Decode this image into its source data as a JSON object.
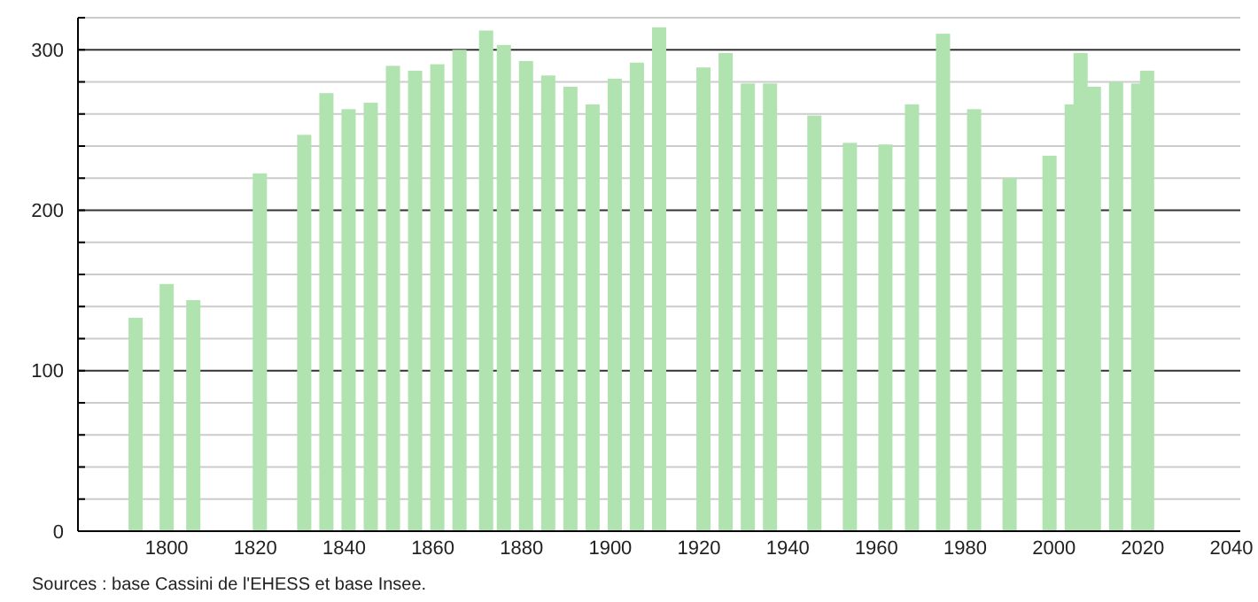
{
  "chart_data": {
    "type": "bar",
    "x": [
      1793,
      1800,
      1806,
      1821,
      1831,
      1836,
      1841,
      1846,
      1851,
      1856,
      1861,
      1866,
      1872,
      1876,
      1881,
      1886,
      1891,
      1896,
      1901,
      1906,
      1911,
      1921,
      1926,
      1931,
      1936,
      1946,
      1954,
      1962,
      1968,
      1975,
      1982,
      1990,
      1999,
      2004,
      2006,
      2009,
      2014,
      2019,
      2021
    ],
    "values": [
      133,
      154,
      144,
      223,
      247,
      273,
      263,
      267,
      290,
      287,
      291,
      300,
      312,
      303,
      293,
      284,
      277,
      266,
      282,
      292,
      314,
      289,
      298,
      279,
      279,
      259,
      242,
      241,
      266,
      310,
      263,
      220,
      234,
      266,
      298,
      277,
      280,
      279,
      287
    ],
    "color": "#b0e3b0",
    "xlim": [
      1780,
      2042
    ],
    "xticks": [
      1800,
      1820,
      1840,
      1860,
      1880,
      1900,
      1920,
      1940,
      1960,
      1980,
      2000,
      2020,
      2040
    ],
    "ylim": [
      0,
      320
    ],
    "yticks": [
      0,
      {
        "value": 20,
        "label": null
      },
      {
        "value": 40,
        "label": null
      },
      {
        "value": 60,
        "label": null
      },
      {
        "value": 80,
        "label": null
      },
      100,
      {
        "value": 120,
        "label": null
      },
      {
        "value": 140,
        "label": null
      },
      {
        "value": 160,
        "label": null
      },
      {
        "value": 180,
        "label": null
      },
      200,
      {
        "value": 220,
        "label": null
      },
      {
        "value": 240,
        "label": null
      },
      {
        "value": 260,
        "label": null
      },
      {
        "value": 280,
        "label": null
      },
      300,
      {
        "value": 320,
        "label": null
      }
    ],
    "grid": "y",
    "annotations": [
      "Sources : base Cassini de l'EHESS et base Insee."
    ]
  }
}
